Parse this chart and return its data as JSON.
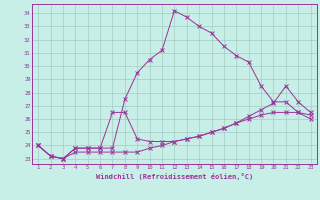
{
  "xlabel": "Windchill (Refroidissement éolien,°C)",
  "x_ticks": [
    1,
    2,
    3,
    4,
    5,
    6,
    7,
    8,
    9,
    10,
    11,
    12,
    13,
    14,
    15,
    16,
    17,
    18,
    19,
    20,
    21,
    22,
    23
  ],
  "yticks": [
    23,
    24,
    25,
    26,
    27,
    28,
    29,
    30,
    31,
    32,
    33,
    34
  ],
  "ylim": [
    22.6,
    34.7
  ],
  "xlim": [
    0.5,
    23.5
  ],
  "bg_color": "#c8eee8",
  "grid_color": "#a0ccc4",
  "line_color": "#993399",
  "line1_x": [
    1,
    2,
    3,
    4,
    5,
    6,
    7,
    8,
    9,
    10,
    11,
    12,
    13,
    14,
    15,
    16,
    17,
    18,
    19,
    20,
    21,
    22,
    23
  ],
  "line1_y": [
    24.0,
    23.2,
    23.0,
    23.8,
    23.8,
    23.8,
    23.8,
    27.5,
    29.5,
    30.5,
    31.2,
    34.2,
    33.7,
    33.0,
    32.5,
    31.5,
    30.8,
    30.3,
    28.5,
    27.3,
    27.3,
    26.5,
    26.0
  ],
  "line2_x": [
    1,
    2,
    3,
    4,
    5,
    6,
    7,
    8,
    9,
    10,
    11,
    12,
    13,
    14,
    15,
    16,
    17,
    18,
    19,
    20,
    21,
    22,
    23
  ],
  "line2_y": [
    24.0,
    23.2,
    23.0,
    23.8,
    23.8,
    23.8,
    26.5,
    26.5,
    24.5,
    24.3,
    24.3,
    24.3,
    24.5,
    24.7,
    25.0,
    25.3,
    25.7,
    26.2,
    26.7,
    27.2,
    28.5,
    27.3,
    26.5
  ],
  "line3_x": [
    1,
    2,
    3,
    4,
    5,
    6,
    7,
    8,
    9,
    10,
    11,
    12,
    13,
    14,
    15,
    16,
    17,
    18,
    19,
    20,
    21,
    22,
    23
  ],
  "line3_y": [
    24.0,
    23.2,
    23.0,
    23.5,
    23.5,
    23.5,
    23.5,
    23.5,
    23.5,
    23.8,
    24.0,
    24.3,
    24.5,
    24.7,
    25.0,
    25.3,
    25.7,
    26.0,
    26.3,
    26.5,
    26.5,
    26.5,
    26.3
  ]
}
